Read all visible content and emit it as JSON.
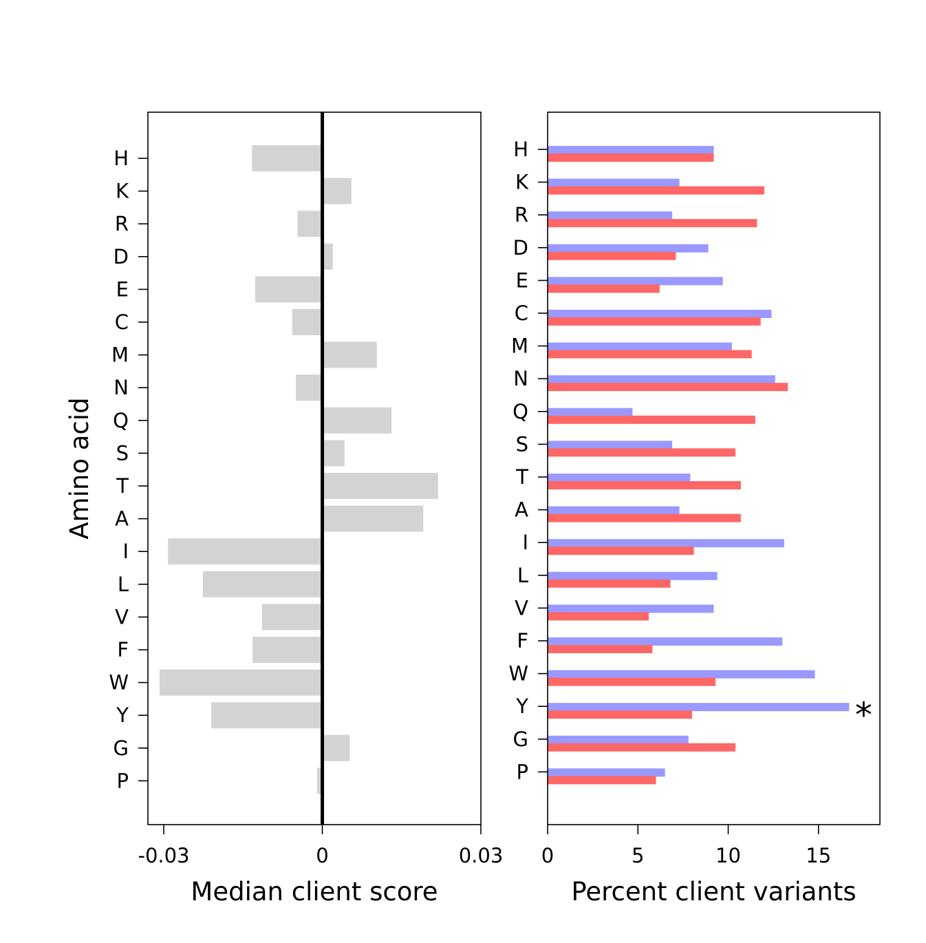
{
  "chart_data": [
    {
      "type": "bar",
      "orientation": "horizontal",
      "categories": [
        "H",
        "K",
        "R",
        "D",
        "E",
        "C",
        "M",
        "N",
        "Q",
        "S",
        "T",
        "A",
        "I",
        "L",
        "V",
        "F",
        "W",
        "Y",
        "G",
        "P"
      ],
      "values": [
        -0.0133,
        0.0055,
        -0.0047,
        0.002,
        -0.0127,
        -0.0057,
        0.0103,
        -0.005,
        0.0131,
        0.0042,
        0.0219,
        0.0191,
        -0.0292,
        -0.0226,
        -0.0114,
        -0.0132,
        -0.0308,
        -0.021,
        0.0052,
        -0.001
      ],
      "xlabel": "Median client score",
      "ylabel": "Amino acid",
      "xlim": [
        -0.033,
        0.03
      ],
      "xticks": [
        -0.03,
        0,
        0.03
      ],
      "xtick_labels": [
        "-0.03",
        "0",
        "0.03"
      ],
      "bar_color": "#d3d3d3",
      "zero_line": true,
      "grid": false
    },
    {
      "type": "bar",
      "orientation": "horizontal",
      "categories": [
        "H",
        "K",
        "R",
        "D",
        "E",
        "C",
        "M",
        "N",
        "Q",
        "S",
        "T",
        "A",
        "I",
        "L",
        "V",
        "F",
        "W",
        "Y",
        "G",
        "P"
      ],
      "series": [
        {
          "color": "#9999ff",
          "values": [
            9.2,
            7.3,
            6.9,
            8.9,
            9.7,
            12.4,
            10.2,
            12.6,
            4.7,
            6.9,
            7.9,
            7.3,
            13.1,
            9.4,
            9.2,
            13.0,
            14.8,
            16.7,
            7.8,
            6.5
          ]
        },
        {
          "color": "#ff6666",
          "values": [
            9.2,
            12.0,
            11.6,
            7.1,
            6.2,
            11.8,
            11.3,
            13.3,
            11.5,
            10.4,
            10.7,
            10.7,
            8.1,
            6.8,
            5.6,
            5.8,
            9.3,
            8.0,
            10.4,
            6.0
          ]
        }
      ],
      "xlabel": "Percent client variants",
      "xlim": [
        0,
        18.4
      ],
      "xticks": [
        0,
        5,
        10,
        15
      ],
      "xtick_labels": [
        "0",
        "5",
        "10",
        "15"
      ],
      "annotations": [
        {
          "category": "Y",
          "text": "*"
        }
      ],
      "grid": false
    }
  ]
}
